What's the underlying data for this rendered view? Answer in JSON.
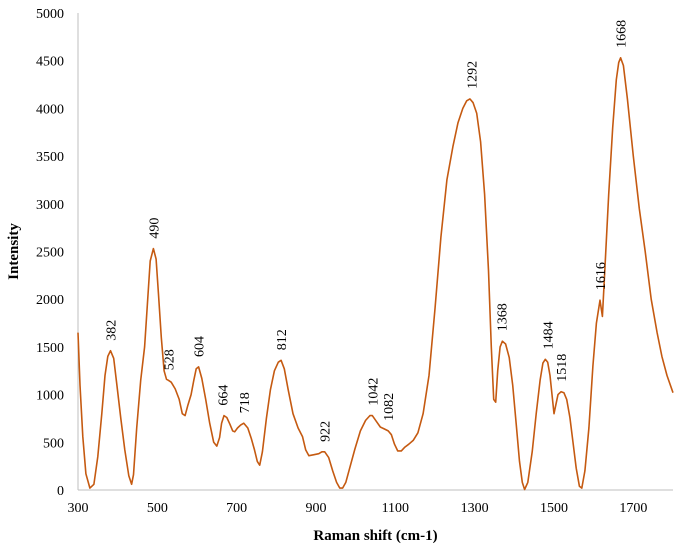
{
  "chart_data": {
    "type": "line",
    "title": "",
    "xlabel": "Raman shift (cm-1)",
    "ylabel": "Intensity",
    "xlim": [
      300,
      1800
    ],
    "ylim": [
      0,
      5000
    ],
    "x_ticks": [
      300,
      500,
      700,
      900,
      1100,
      1300,
      1500,
      1700
    ],
    "y_ticks": [
      0,
      500,
      1000,
      1500,
      2000,
      2500,
      3000,
      3500,
      4000,
      4500,
      5000
    ],
    "grid": false,
    "color": "#c55a11",
    "series": [
      {
        "points": [
          [
            300,
            1650
          ],
          [
            305,
            1100
          ],
          [
            312,
            560
          ],
          [
            320,
            170
          ],
          [
            330,
            20
          ],
          [
            340,
            60
          ],
          [
            350,
            350
          ],
          [
            360,
            800
          ],
          [
            368,
            1200
          ],
          [
            375,
            1400
          ],
          [
            382,
            1460
          ],
          [
            390,
            1380
          ],
          [
            398,
            1100
          ],
          [
            408,
            750
          ],
          [
            418,
            420
          ],
          [
            428,
            150
          ],
          [
            435,
            60
          ],
          [
            440,
            160
          ],
          [
            448,
            650
          ],
          [
            458,
            1150
          ],
          [
            468,
            1500
          ],
          [
            475,
            1950
          ],
          [
            482,
            2400
          ],
          [
            490,
            2530
          ],
          [
            497,
            2420
          ],
          [
            503,
            2050
          ],
          [
            510,
            1600
          ],
          [
            517,
            1250
          ],
          [
            523,
            1160
          ],
          [
            528,
            1150
          ],
          [
            535,
            1130
          ],
          [
            545,
            1060
          ],
          [
            555,
            950
          ],
          [
            563,
            800
          ],
          [
            570,
            780
          ],
          [
            577,
            890
          ],
          [
            585,
            1000
          ],
          [
            592,
            1150
          ],
          [
            598,
            1270
          ],
          [
            604,
            1290
          ],
          [
            612,
            1170
          ],
          [
            622,
            950
          ],
          [
            632,
            700
          ],
          [
            642,
            500
          ],
          [
            650,
            460
          ],
          [
            657,
            550
          ],
          [
            662,
            700
          ],
          [
            668,
            780
          ],
          [
            675,
            760
          ],
          [
            683,
            690
          ],
          [
            690,
            620
          ],
          [
            695,
            610
          ],
          [
            702,
            650
          ],
          [
            710,
            680
          ],
          [
            718,
            700
          ],
          [
            728,
            650
          ],
          [
            737,
            540
          ],
          [
            745,
            420
          ],
          [
            752,
            300
          ],
          [
            758,
            260
          ],
          [
            765,
            400
          ],
          [
            775,
            750
          ],
          [
            785,
            1050
          ],
          [
            795,
            1250
          ],
          [
            805,
            1340
          ],
          [
            812,
            1360
          ],
          [
            820,
            1270
          ],
          [
            830,
            1050
          ],
          [
            842,
            800
          ],
          [
            855,
            650
          ],
          [
            866,
            560
          ],
          [
            874,
            420
          ],
          [
            882,
            360
          ],
          [
            895,
            370
          ],
          [
            907,
            380
          ],
          [
            915,
            400
          ],
          [
            922,
            400
          ],
          [
            932,
            340
          ],
          [
            942,
            200
          ],
          [
            952,
            80
          ],
          [
            960,
            20
          ],
          [
            967,
            20
          ],
          [
            975,
            80
          ],
          [
            985,
            230
          ],
          [
            998,
            430
          ],
          [
            1012,
            620
          ],
          [
            1025,
            730
          ],
          [
            1036,
            780
          ],
          [
            1042,
            780
          ],
          [
            1052,
            720
          ],
          [
            1062,
            660
          ],
          [
            1072,
            640
          ],
          [
            1082,
            620
          ],
          [
            1090,
            580
          ],
          [
            1098,
            480
          ],
          [
            1106,
            410
          ],
          [
            1115,
            410
          ],
          [
            1124,
            450
          ],
          [
            1134,
            480
          ],
          [
            1145,
            520
          ],
          [
            1157,
            600
          ],
          [
            1170,
            800
          ],
          [
            1185,
            1200
          ],
          [
            1200,
            1900
          ],
          [
            1215,
            2650
          ],
          [
            1230,
            3250
          ],
          [
            1245,
            3600
          ],
          [
            1258,
            3850
          ],
          [
            1270,
            4000
          ],
          [
            1280,
            4080
          ],
          [
            1288,
            4100
          ],
          [
            1296,
            4060
          ],
          [
            1305,
            3950
          ],
          [
            1315,
            3650
          ],
          [
            1325,
            3100
          ],
          [
            1335,
            2300
          ],
          [
            1342,
            1500
          ],
          [
            1348,
            950
          ],
          [
            1353,
            920
          ],
          [
            1358,
            1250
          ],
          [
            1364,
            1500
          ],
          [
            1370,
            1560
          ],
          [
            1378,
            1530
          ],
          [
            1387,
            1390
          ],
          [
            1396,
            1100
          ],
          [
            1405,
            680
          ],
          [
            1413,
            300
          ],
          [
            1420,
            80
          ],
          [
            1426,
            5
          ],
          [
            1434,
            80
          ],
          [
            1445,
            400
          ],
          [
            1455,
            800
          ],
          [
            1465,
            1150
          ],
          [
            1472,
            1330
          ],
          [
            1478,
            1370
          ],
          [
            1484,
            1340
          ],
          [
            1490,
            1200
          ],
          [
            1495,
            1000
          ],
          [
            1500,
            800
          ],
          [
            1505,
            900
          ],
          [
            1510,
            1000
          ],
          [
            1518,
            1030
          ],
          [
            1525,
            1020
          ],
          [
            1532,
            950
          ],
          [
            1540,
            760
          ],
          [
            1548,
            500
          ],
          [
            1556,
            230
          ],
          [
            1564,
            40
          ],
          [
            1570,
            20
          ],
          [
            1578,
            200
          ],
          [
            1588,
            650
          ],
          [
            1598,
            1300
          ],
          [
            1607,
            1750
          ],
          [
            1616,
            1990
          ],
          [
            1622,
            1820
          ],
          [
            1628,
            2300
          ],
          [
            1638,
            3100
          ],
          [
            1648,
            3800
          ],
          [
            1657,
            4300
          ],
          [
            1663,
            4480
          ],
          [
            1668,
            4530
          ],
          [
            1675,
            4450
          ],
          [
            1685,
            4100
          ],
          [
            1700,
            3500
          ],
          [
            1715,
            2950
          ],
          [
            1730,
            2500
          ],
          [
            1745,
            2000
          ],
          [
            1760,
            1650
          ],
          [
            1772,
            1400
          ],
          [
            1785,
            1200
          ],
          [
            1800,
            1020
          ]
        ]
      }
    ],
    "annotations": [
      {
        "x": 382,
        "y": 1460,
        "label": "382"
      },
      {
        "x": 490,
        "y": 2530,
        "label": "490"
      },
      {
        "x": 528,
        "y": 1150,
        "label": "528"
      },
      {
        "x": 604,
        "y": 1290,
        "label": "604"
      },
      {
        "x": 664,
        "y": 780,
        "label": "664"
      },
      {
        "x": 718,
        "y": 700,
        "label": "718"
      },
      {
        "x": 812,
        "y": 1360,
        "label": "812"
      },
      {
        "x": 922,
        "y": 400,
        "label": "922"
      },
      {
        "x": 1042,
        "y": 780,
        "label": "1042"
      },
      {
        "x": 1082,
        "y": 620,
        "label": "1082"
      },
      {
        "x": 1292,
        "y": 4100,
        "label": "1292"
      },
      {
        "x": 1368,
        "y": 1560,
        "label": "1368"
      },
      {
        "x": 1484,
        "y": 1370,
        "label": "1484"
      },
      {
        "x": 1518,
        "y": 1030,
        "label": "1518"
      },
      {
        "x": 1616,
        "y": 1990,
        "label": "1616"
      },
      {
        "x": 1668,
        "y": 4530,
        "label": "1668"
      }
    ]
  }
}
